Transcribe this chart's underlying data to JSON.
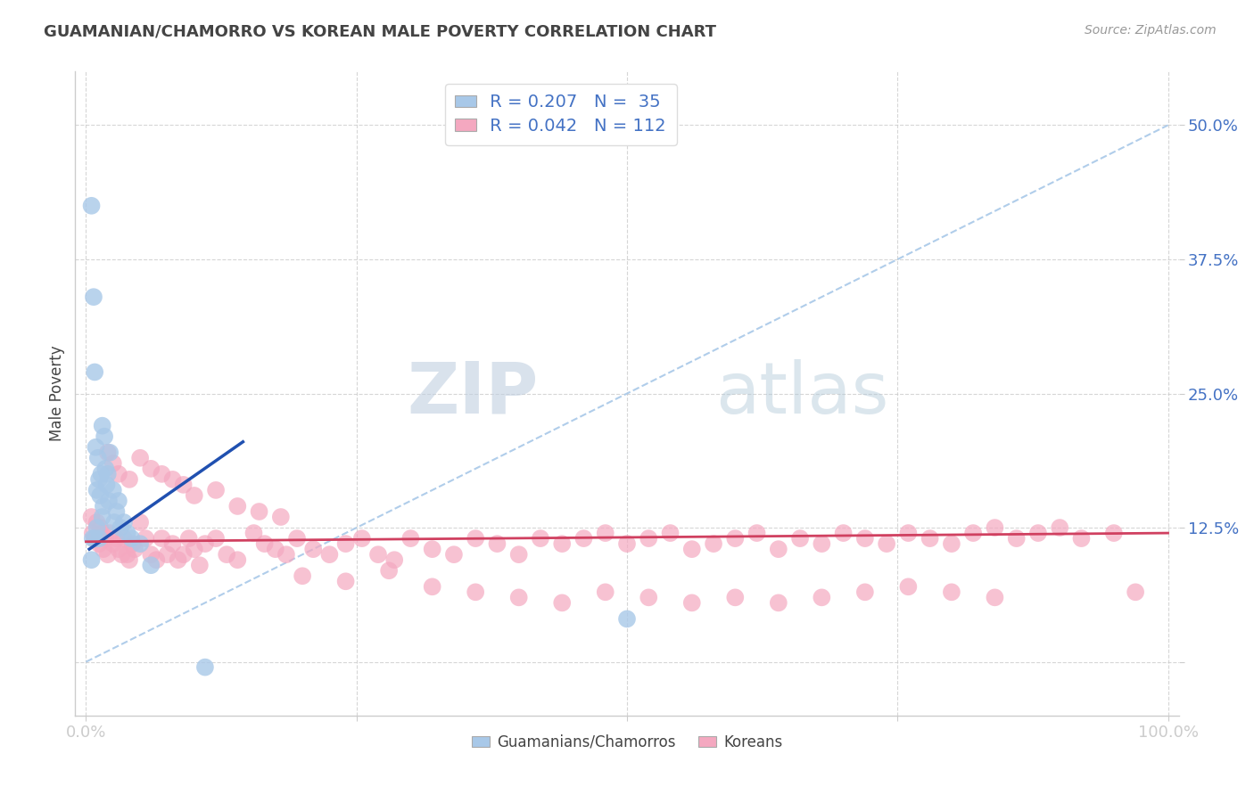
{
  "title": "GUAMANIAN/CHAMORRO VS KOREAN MALE POVERTY CORRELATION CHART",
  "source": "Source: ZipAtlas.com",
  "ylabel": "Male Poverty",
  "color_blue": "#a8c8e8",
  "color_pink": "#f4a8c0",
  "line_blue": "#2050b0",
  "line_pink": "#d04060",
  "line_diag_color": "#a8c8e8",
  "background": "#ffffff",
  "legend_r1": "R = 0.207",
  "legend_n1": "N =  35",
  "legend_r2": "R = 0.042",
  "legend_n2": "N = 112",
  "blue_scatter_x": [
    0.005,
    0.005,
    0.006,
    0.007,
    0.008,
    0.008,
    0.009,
    0.01,
    0.01,
    0.011,
    0.012,
    0.012,
    0.013,
    0.014,
    0.015,
    0.015,
    0.016,
    0.017,
    0.018,
    0.019,
    0.02,
    0.021,
    0.022,
    0.025,
    0.026,
    0.028,
    0.03,
    0.032,
    0.035,
    0.038,
    0.042,
    0.05,
    0.06,
    0.11,
    0.5
  ],
  "blue_scatter_y": [
    0.425,
    0.095,
    0.115,
    0.34,
    0.27,
    0.115,
    0.2,
    0.16,
    0.125,
    0.19,
    0.17,
    0.115,
    0.155,
    0.175,
    0.22,
    0.135,
    0.145,
    0.21,
    0.18,
    0.165,
    0.175,
    0.15,
    0.195,
    0.16,
    0.13,
    0.14,
    0.15,
    0.125,
    0.13,
    0.12,
    0.115,
    0.11,
    0.09,
    -0.005,
    0.04
  ],
  "pink_scatter_x": [
    0.005,
    0.006,
    0.008,
    0.01,
    0.012,
    0.013,
    0.015,
    0.016,
    0.018,
    0.02,
    0.022,
    0.025,
    0.028,
    0.03,
    0.033,
    0.035,
    0.038,
    0.04,
    0.043,
    0.045,
    0.05,
    0.055,
    0.06,
    0.065,
    0.07,
    0.075,
    0.08,
    0.085,
    0.09,
    0.095,
    0.1,
    0.105,
    0.11,
    0.12,
    0.13,
    0.14,
    0.155,
    0.165,
    0.175,
    0.185,
    0.195,
    0.21,
    0.225,
    0.24,
    0.255,
    0.27,
    0.285,
    0.3,
    0.32,
    0.34,
    0.36,
    0.38,
    0.4,
    0.42,
    0.44,
    0.46,
    0.48,
    0.5,
    0.52,
    0.54,
    0.56,
    0.58,
    0.6,
    0.62,
    0.64,
    0.66,
    0.68,
    0.7,
    0.72,
    0.74,
    0.76,
    0.78,
    0.8,
    0.82,
    0.84,
    0.86,
    0.88,
    0.9,
    0.92,
    0.95,
    0.02,
    0.025,
    0.03,
    0.04,
    0.05,
    0.06,
    0.07,
    0.08,
    0.09,
    0.1,
    0.12,
    0.14,
    0.16,
    0.18,
    0.2,
    0.24,
    0.28,
    0.32,
    0.36,
    0.4,
    0.44,
    0.48,
    0.52,
    0.56,
    0.6,
    0.64,
    0.68,
    0.72,
    0.76,
    0.8,
    0.84,
    0.97
  ],
  "pink_scatter_y": [
    0.135,
    0.12,
    0.115,
    0.13,
    0.11,
    0.125,
    0.12,
    0.105,
    0.115,
    0.1,
    0.12,
    0.11,
    0.115,
    0.105,
    0.1,
    0.115,
    0.1,
    0.095,
    0.11,
    0.105,
    0.13,
    0.115,
    0.1,
    0.095,
    0.115,
    0.1,
    0.11,
    0.095,
    0.1,
    0.115,
    0.105,
    0.09,
    0.11,
    0.115,
    0.1,
    0.095,
    0.12,
    0.11,
    0.105,
    0.1,
    0.115,
    0.105,
    0.1,
    0.11,
    0.115,
    0.1,
    0.095,
    0.115,
    0.105,
    0.1,
    0.115,
    0.11,
    0.1,
    0.115,
    0.11,
    0.115,
    0.12,
    0.11,
    0.115,
    0.12,
    0.105,
    0.11,
    0.115,
    0.12,
    0.105,
    0.115,
    0.11,
    0.12,
    0.115,
    0.11,
    0.12,
    0.115,
    0.11,
    0.12,
    0.125,
    0.115,
    0.12,
    0.125,
    0.115,
    0.12,
    0.195,
    0.185,
    0.175,
    0.17,
    0.19,
    0.18,
    0.175,
    0.17,
    0.165,
    0.155,
    0.16,
    0.145,
    0.14,
    0.135,
    0.08,
    0.075,
    0.085,
    0.07,
    0.065,
    0.06,
    0.055,
    0.065,
    0.06,
    0.055,
    0.06,
    0.055,
    0.06,
    0.065,
    0.07,
    0.065,
    0.06,
    0.065
  ]
}
